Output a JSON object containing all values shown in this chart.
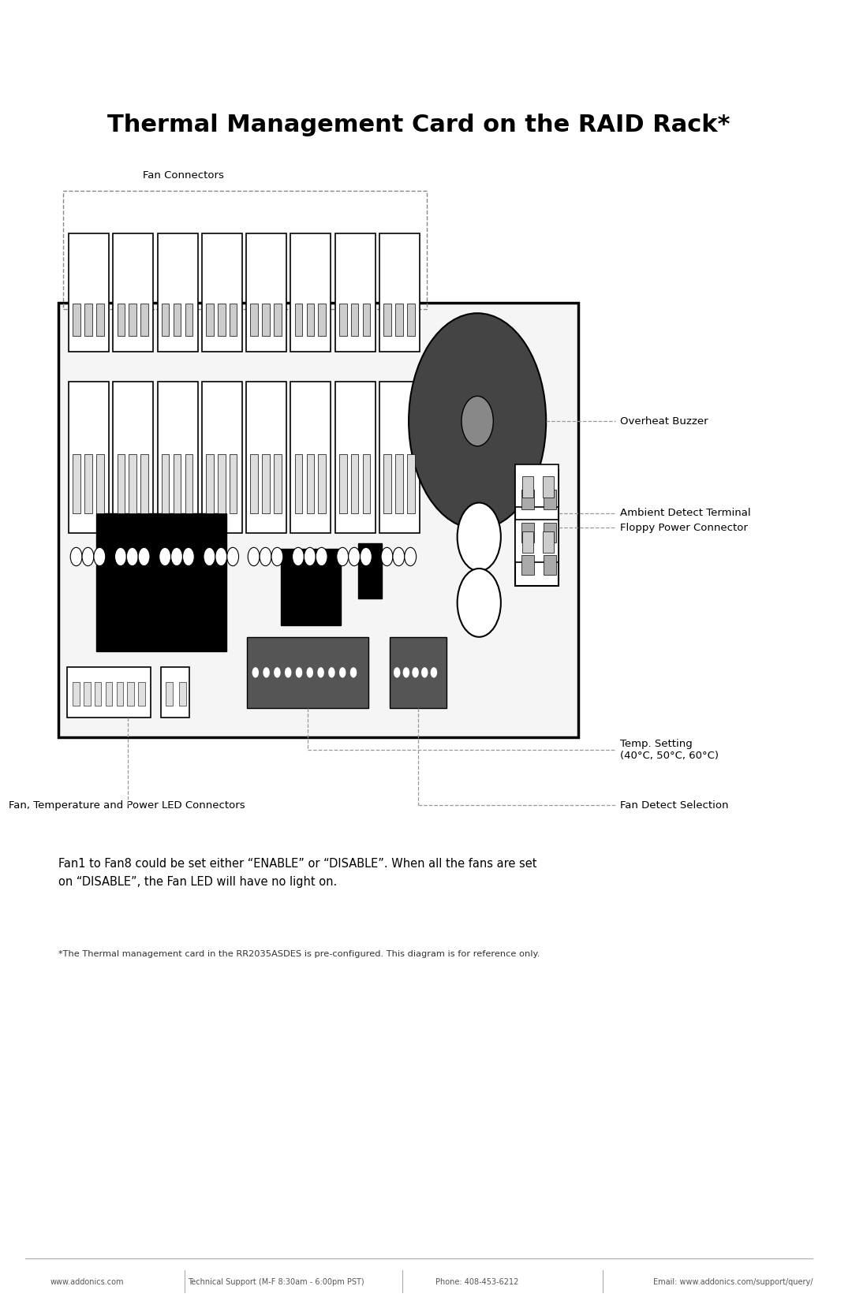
{
  "title": "Thermal Management Card on the RAID Rack*",
  "title_fontsize": 22,
  "title_fontweight": "bold",
  "bg_color": "#ffffff",
  "label_overheat_buzzer": "Overheat Buzzer",
  "label_floppy": "Floppy Power Connector",
  "label_ambient": "Ambient Detect Terminal",
  "label_temp": "Temp. Setting\n(40°C, 50°C, 60°C)",
  "label_fan_detect": "Fan Detect Selection",
  "label_fan_connectors": "Fan Connectors",
  "label_fan_led": "Fan, Temperature and Power LED Connectors",
  "body_text1": "Fan1 to Fan8 could be set either “ENABLE” or “DISABLE”. When all the fans are set\non “DISABLE”, the Fan LED will have no light on.",
  "body_text2": "*The Thermal management card in the RR2035ASDES is pre-configured. This diagram is for reference only.",
  "footer_left": "www.addonics.com",
  "footer_mid1": "Technical Support (M-F 8:30am - 6:00pm PST)",
  "footer_mid2": "Phone: 408-453-6212",
  "footer_right": "Email: www.addonics.com/support/query/"
}
